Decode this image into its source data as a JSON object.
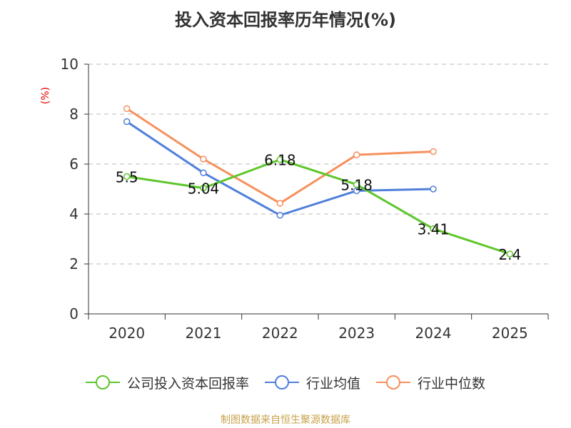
{
  "title": "投入资本回报率历年情况(%)",
  "unit_label": "(%)",
  "footer": "制图数据来自恒生聚源数据库",
  "colors": {
    "company": "#5ec62b",
    "industry_mean": "#4f7fdb",
    "industry_median": "#f6905d",
    "axis": "#333333",
    "grid": "#bbbbbb"
  },
  "chart_data": {
    "type": "line",
    "title": "投入资本回报率历年情况(%)",
    "xlabel": "",
    "ylabel": "(%)",
    "categories": [
      "2020",
      "2021",
      "2022",
      "2023",
      "2024",
      "2025"
    ],
    "ylim": [
      0,
      10
    ],
    "yticks": [
      0,
      2,
      4,
      6,
      8,
      10
    ],
    "grid": true,
    "legend_position": "bottom",
    "series": [
      {
        "name": "公司投入资本回报率",
        "values": [
          5.5,
          5.04,
          6.18,
          5.18,
          3.41,
          2.4
        ],
        "labels": [
          "5.5",
          "5.04",
          "6.18",
          "5.18",
          "3.41",
          "2.4"
        ]
      },
      {
        "name": "行业均值",
        "values": [
          7.7,
          5.65,
          3.95,
          4.93,
          5.0,
          null
        ]
      },
      {
        "name": "行业中位数",
        "values": [
          8.22,
          6.2,
          4.43,
          6.37,
          6.5,
          null
        ]
      }
    ]
  }
}
